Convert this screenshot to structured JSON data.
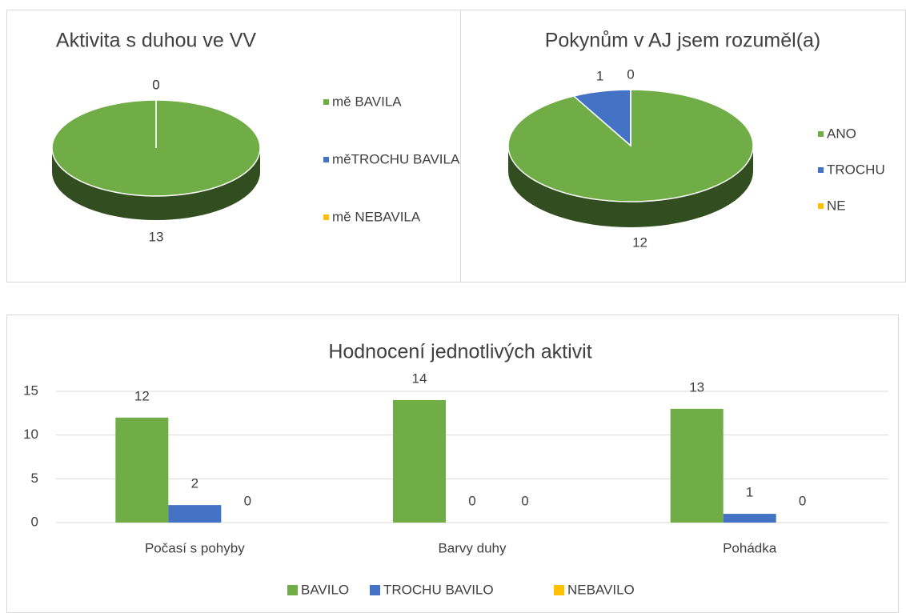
{
  "chart_data": [
    {
      "type": "pie",
      "title": "Aktivita s duhou ve VV",
      "categories": [
        "mě BAVILA",
        "měTROCHU BAVILA",
        "mě NEBAVILA"
      ],
      "values": [
        13,
        0,
        0
      ],
      "colors": [
        "#70ad47",
        "#4472c4",
        "#ffc000"
      ],
      "legend": "right"
    },
    {
      "type": "pie",
      "title": "Pokynům v AJ jsem rozuměl(a)",
      "categories": [
        "ANO",
        "TROCHU",
        "NE"
      ],
      "values": [
        12,
        1,
        0
      ],
      "colors": [
        "#70ad47",
        "#4472c4",
        "#ffc000"
      ],
      "legend": "right"
    },
    {
      "type": "bar",
      "title": "Hodnocení jednotlivých aktivit",
      "categories": [
        "Počasí s pohyby",
        "Barvy duhy",
        "Pohádka"
      ],
      "series": [
        {
          "name": "BAVILO",
          "color": "#70ad47",
          "values": [
            12,
            14,
            13
          ]
        },
        {
          "name": "TROCHU BAVILO",
          "color": "#4472c4",
          "values": [
            2,
            0,
            1
          ]
        },
        {
          "name": "NEBAVILO",
          "color": "#ffc000",
          "values": [
            0,
            0,
            0
          ]
        }
      ],
      "ylim": [
        0,
        15
      ],
      "yticks": [
        0,
        5,
        10,
        15
      ],
      "grid": true,
      "legend": "bottom"
    }
  ]
}
